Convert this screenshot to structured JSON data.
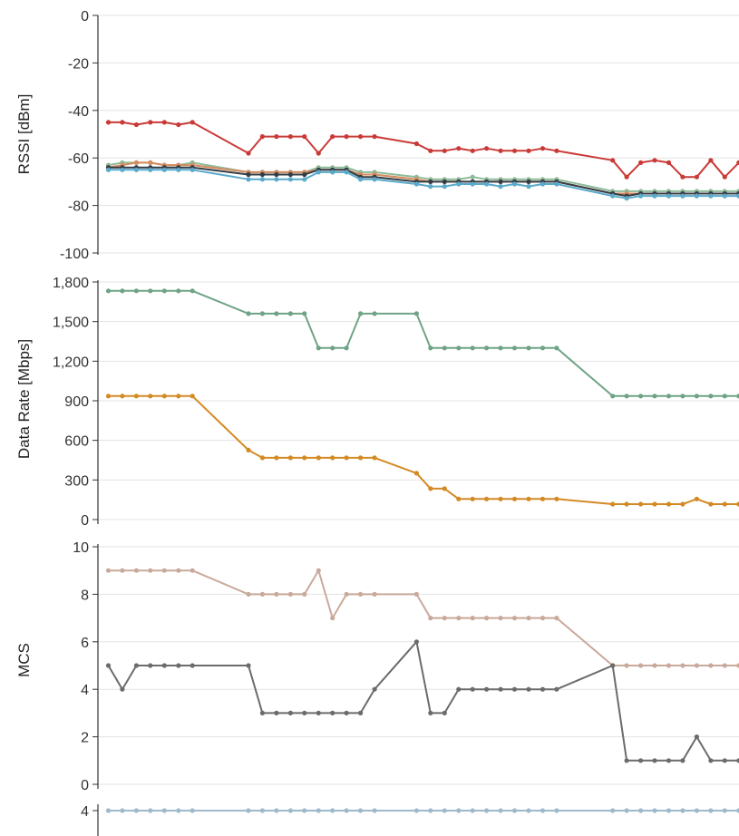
{
  "chart_data": [
    {
      "type": "line",
      "ylabel": "RSSI [dBm]",
      "ylim": [
        -100,
        0
      ],
      "yticks": [
        0,
        -20,
        -40,
        -60,
        -80,
        -100
      ],
      "grid": true,
      "series": [
        {
          "color": "#c93a37",
          "x": [
            1,
            2,
            3,
            4,
            5,
            6,
            7,
            11,
            12,
            13,
            14,
            15,
            16,
            17,
            18,
            19,
            20,
            23,
            24,
            25,
            26,
            27,
            28,
            29,
            30,
            31,
            32,
            33,
            37,
            38,
            39,
            40,
            41,
            42,
            43,
            44,
            45,
            46,
            47
          ],
          "values": [
            -45,
            -45,
            -46,
            -45,
            -45,
            -46,
            -45,
            -58,
            -51,
            -51,
            -51,
            -51,
            -58,
            -51,
            -51,
            -51,
            -51,
            -54,
            -57,
            -57,
            -56,
            -57,
            -56,
            -57,
            -57,
            -57,
            -56,
            -57,
            -61,
            -68,
            -62,
            -61,
            -62,
            -68,
            -68,
            -61,
            -68,
            -62,
            -63
          ]
        },
        {
          "color": "#8fba9a",
          "x": [
            1,
            2,
            3,
            4,
            5,
            6,
            7,
            11,
            12,
            13,
            14,
            15,
            16,
            17,
            18,
            19,
            20,
            23,
            24,
            25,
            26,
            27,
            28,
            29,
            30,
            31,
            32,
            33,
            37,
            38,
            39,
            40,
            41,
            42,
            43,
            44,
            45,
            46,
            47
          ],
          "values": [
            -63,
            -62,
            -62,
            -62,
            -63,
            -63,
            -62,
            -66,
            -66,
            -66,
            -66,
            -66,
            -64,
            -64,
            -64,
            -66,
            -66,
            -68,
            -69,
            -69,
            -69,
            -68,
            -69,
            -69,
            -69,
            -69,
            -69,
            -69,
            -74,
            -74,
            -74,
            -74,
            -74,
            -74,
            -74,
            -74,
            -74,
            -74,
            -75
          ]
        },
        {
          "color": "#d58b5e",
          "x": [
            1,
            2,
            3,
            4,
            5,
            6,
            7,
            11,
            12,
            13,
            14,
            15,
            16,
            17,
            18,
            19,
            20,
            23,
            24,
            25,
            26,
            27,
            28,
            29,
            30,
            31,
            32,
            33,
            37,
            38,
            39,
            40,
            41,
            42,
            43,
            44,
            45,
            46,
            47
          ],
          "values": [
            -64,
            -63,
            -62,
            -62,
            -63,
            -63,
            -63,
            -66,
            -66,
            -66,
            -66,
            -66,
            -65,
            -65,
            -65,
            -67,
            -67,
            -69,
            -70,
            -70,
            -70,
            -70,
            -70,
            -70,
            -70,
            -70,
            -70,
            -70,
            -75,
            -75,
            -75,
            -75,
            -75,
            -75,
            -75,
            -75,
            -75,
            -75,
            -75
          ]
        },
        {
          "color": "#333d44",
          "x": [
            1,
            2,
            3,
            4,
            5,
            6,
            7,
            11,
            12,
            13,
            14,
            15,
            16,
            17,
            18,
            19,
            20,
            23,
            24,
            25,
            26,
            27,
            28,
            29,
            30,
            31,
            32,
            33,
            37,
            38,
            39,
            40,
            41,
            42,
            43,
            44,
            45,
            46,
            47
          ],
          "values": [
            -64,
            -64,
            -64,
            -64,
            -64,
            -64,
            -64,
            -67,
            -67,
            -67,
            -67,
            -67,
            -65,
            -65,
            -65,
            -68,
            -68,
            -70,
            -70,
            -70,
            -70,
            -70,
            -70,
            -70,
            -70,
            -70,
            -70,
            -70,
            -75,
            -76,
            -75,
            -75,
            -75,
            -75,
            -75,
            -75,
            -75,
            -75,
            -76
          ]
        },
        {
          "color": "#5aaacb",
          "x": [
            1,
            2,
            3,
            4,
            5,
            6,
            7,
            11,
            12,
            13,
            14,
            15,
            16,
            17,
            18,
            19,
            20,
            23,
            24,
            25,
            26,
            27,
            28,
            29,
            30,
            31,
            32,
            33,
            37,
            38,
            39,
            40,
            41,
            42,
            43,
            44,
            45,
            46,
            47
          ],
          "values": [
            -65,
            -65,
            -65,
            -65,
            -65,
            -65,
            -65,
            -69,
            -69,
            -69,
            -69,
            -69,
            -66,
            -66,
            -66,
            -69,
            -69,
            -71,
            -72,
            -72,
            -71,
            -71,
            -71,
            -72,
            -71,
            -72,
            -71,
            -71,
            -76,
            -77,
            -76,
            -76,
            -76,
            -76,
            -76,
            -76,
            -76,
            -76,
            -77
          ]
        }
      ]
    },
    {
      "type": "line",
      "ylabel": "Data Rate [Mbps]",
      "ylim": [
        0,
        1800
      ],
      "yticks": [
        0,
        300,
        600,
        900,
        1200,
        1500,
        1800
      ],
      "ytick_labels": [
        "0",
        "300",
        "600",
        "900",
        "1,200",
        "1,500",
        "1,800"
      ],
      "grid": true,
      "series": [
        {
          "color": "#6fa386",
          "x": [
            1,
            2,
            3,
            4,
            5,
            6,
            7,
            11,
            12,
            13,
            14,
            15,
            16,
            17,
            18,
            19,
            20,
            23,
            24,
            25,
            26,
            27,
            28,
            29,
            30,
            31,
            32,
            33,
            37,
            38,
            39,
            40,
            41,
            42,
            43,
            44,
            45,
            46,
            47
          ],
          "values": [
            1733,
            1733,
            1733,
            1733,
            1733,
            1733,
            1733,
            1560,
            1560,
            1560,
            1560,
            1560,
            1300,
            1300,
            1300,
            1560,
            1560,
            1560,
            1300,
            1300,
            1300,
            1300,
            1300,
            1300,
            1300,
            1300,
            1300,
            1300,
            936,
            936,
            936,
            936,
            936,
            936,
            936,
            936,
            936,
            936,
            900
          ]
        },
        {
          "color": "#d48a24",
          "x": [
            1,
            2,
            3,
            4,
            5,
            6,
            7,
            11,
            12,
            13,
            14,
            15,
            16,
            17,
            18,
            19,
            20,
            23,
            24,
            25,
            26,
            27,
            28,
            29,
            30,
            31,
            32,
            33,
            37,
            38,
            39,
            40,
            41,
            42,
            43,
            44,
            45,
            46,
            47
          ],
          "values": [
            936,
            936,
            936,
            936,
            936,
            936,
            936,
            526,
            468,
            468,
            468,
            468,
            468,
            468,
            468,
            468,
            468,
            351,
            234,
            234,
            156,
            156,
            156,
            156,
            156,
            156,
            156,
            156,
            117,
            117,
            117,
            117,
            117,
            117,
            156,
            117,
            117,
            117,
            115
          ]
        }
      ]
    },
    {
      "type": "line",
      "ylabel": "MCS",
      "ylim": [
        0,
        10
      ],
      "yticks": [
        0,
        2,
        4,
        6,
        8,
        10
      ],
      "grid": true,
      "series": [
        {
          "color": "#c9a99b",
          "x": [
            1,
            2,
            3,
            4,
            5,
            6,
            7,
            11,
            12,
            13,
            14,
            15,
            16,
            17,
            18,
            19,
            20,
            23,
            24,
            25,
            26,
            27,
            28,
            29,
            30,
            31,
            32,
            33,
            37,
            38,
            39,
            40,
            41,
            42,
            43,
            44,
            45,
            46,
            47
          ],
          "values": [
            9,
            9,
            9,
            9,
            9,
            9,
            9,
            8,
            8,
            8,
            8,
            8,
            9,
            7,
            8,
            8,
            8,
            8,
            7,
            7,
            7,
            7,
            7,
            7,
            7,
            7,
            7,
            7,
            5,
            5,
            5,
            5,
            5,
            5,
            5,
            5,
            5,
            5,
            4.8
          ]
        },
        {
          "color": "#6b6b6b",
          "x": [
            1,
            2,
            3,
            4,
            5,
            6,
            7,
            11,
            12,
            13,
            14,
            15,
            16,
            17,
            18,
            19,
            20,
            23,
            24,
            25,
            26,
            27,
            28,
            29,
            30,
            31,
            32,
            33,
            37,
            38,
            39,
            40,
            41,
            42,
            43,
            44,
            45,
            46,
            47
          ],
          "values": [
            5,
            4,
            5,
            5,
            5,
            5,
            5,
            5,
            3,
            3,
            3,
            3,
            3,
            3,
            3,
            3,
            4,
            6,
            3,
            3,
            4,
            4,
            4,
            4,
            4,
            4,
            4,
            4,
            5,
            1,
            1,
            1,
            1,
            1,
            2,
            1,
            1,
            1,
            1
          ]
        }
      ]
    },
    {
      "type": "line",
      "yticks": [
        4
      ],
      "grid": false,
      "series": [
        {
          "color": "#9fb9cc",
          "x": [
            1,
            2,
            3,
            4,
            5,
            6,
            7,
            11,
            12,
            13,
            14,
            15,
            16,
            17,
            18,
            19,
            20,
            23,
            24,
            25,
            26,
            27,
            28,
            29,
            30,
            31,
            32,
            33,
            37,
            38,
            39,
            40,
            41,
            42,
            43,
            44,
            45,
            46,
            47
          ],
          "values": [
            4,
            4,
            4,
            4,
            4,
            4,
            4,
            4,
            4,
            4,
            4,
            4,
            4,
            4,
            4,
            4,
            4,
            4,
            4,
            4,
            4,
            4,
            4,
            4,
            4,
            4,
            4,
            4,
            4,
            4,
            4,
            4,
            4,
            4,
            4,
            4,
            4,
            4,
            4
          ]
        }
      ]
    }
  ]
}
